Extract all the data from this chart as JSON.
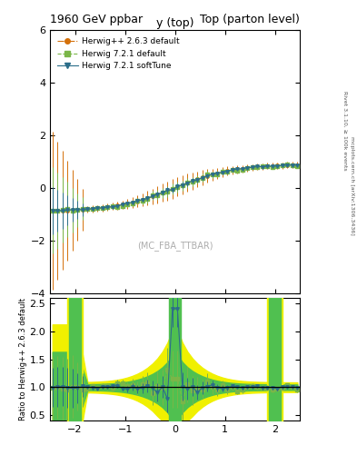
{
  "title_left": "1960 GeV ppbar",
  "title_right": "Top (parton level)",
  "xlabel": "y (top)",
  "ylabel_ratio": "Ratio to Herwig++ 2.6.3 default",
  "right_label": "Rivet 3.1.10, ≥ 100k events",
  "right_label2": "mcplots.cern.ch [arXiv:1306.3436]",
  "watermark": "(MC_FBA_TTBAR)",
  "xlim": [
    -2.5,
    2.5
  ],
  "ylim_main": [
    -4,
    6
  ],
  "ylim_ratio": [
    0.4,
    2.6
  ],
  "yticks_main": [
    -4,
    -2,
    0,
    2,
    4,
    6
  ],
  "yticks_ratio": [
    0.5,
    1.0,
    1.5,
    2.0,
    2.5
  ],
  "color_hpp": "#d4700a",
  "color_h721": "#7ab648",
  "color_h721s": "#2c6e8a",
  "color_band_yellow": "#f0f000",
  "color_band_green": "#50c050",
  "legend": [
    {
      "label": "Herwig++ 2.6.3 default",
      "color": "#d4700a",
      "marker": "o",
      "ls": "-."
    },
    {
      "label": "Herwig 7.2.1 default",
      "color": "#7ab648",
      "marker": "s",
      "ls": "--"
    },
    {
      "label": "Herwig 7.2.1 softTune",
      "color": "#2c6e8a",
      "marker": "v",
      "ls": "-"
    }
  ]
}
